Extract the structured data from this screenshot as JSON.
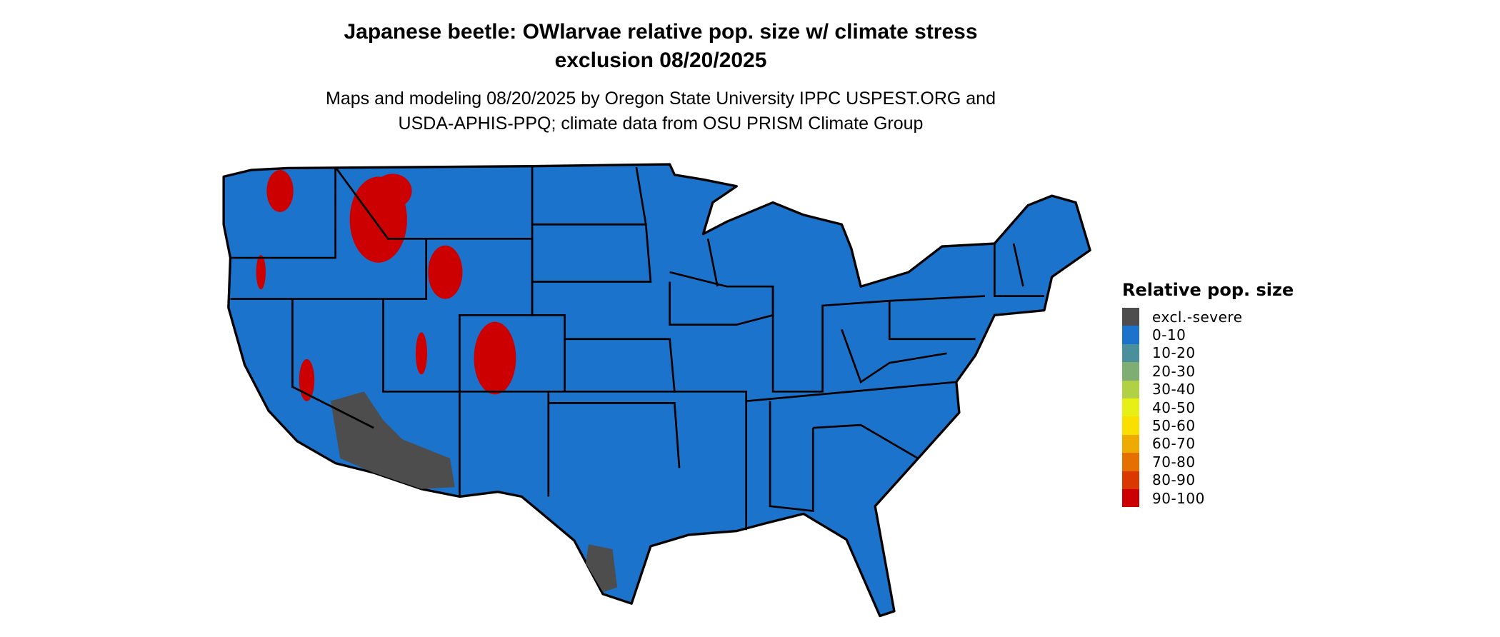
{
  "title_line1": "Japanese beetle: OWlarvae relative pop. size w/ climate stress",
  "title_line2": "exclusion 08/20/2025",
  "subtitle_line1": "Maps and modeling 08/20/2025 by Oregon State University IPPC USPEST.ORG and",
  "subtitle_line2": "USDA-APHIS-PPQ; climate data from OSU PRISM Climate Group",
  "legend": {
    "title": "Relative pop. size",
    "items": [
      {
        "label": "excl.-severe",
        "color": "#4d4d4d"
      },
      {
        "label": "0-10",
        "color": "#1b73cc"
      },
      {
        "label": "10-20",
        "color": "#4a8f9c"
      },
      {
        "label": "20-30",
        "color": "#7eae72"
      },
      {
        "label": "30-40",
        "color": "#b2d044"
      },
      {
        "label": "40-50",
        "color": "#e6ef16"
      },
      {
        "label": "50-60",
        "color": "#f9e000"
      },
      {
        "label": "60-70",
        "color": "#efaa00"
      },
      {
        "label": "70-80",
        "color": "#e57000"
      },
      {
        "label": "80-90",
        "color": "#db3800"
      },
      {
        "label": "90-100",
        "color": "#cc0000"
      }
    ]
  },
  "map": {
    "region": "Contiguous United States",
    "dominant_class": "0-10"
  }
}
